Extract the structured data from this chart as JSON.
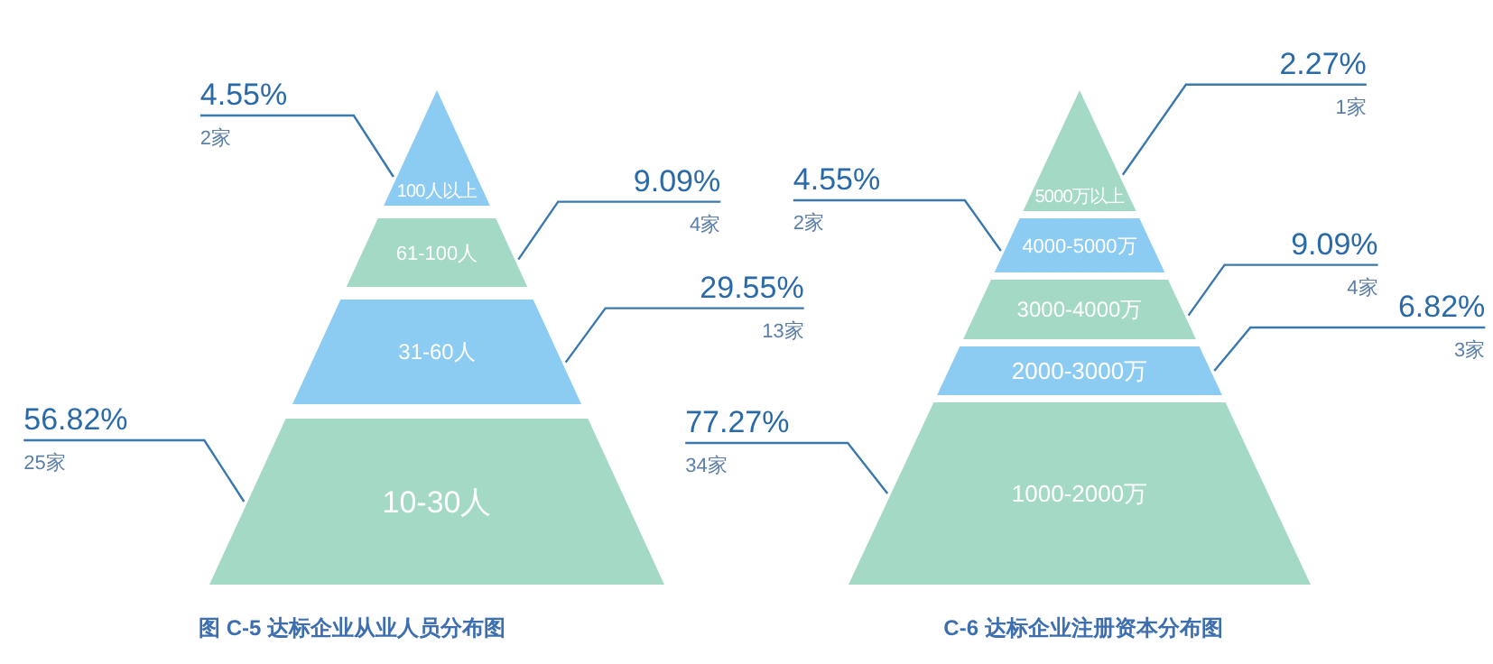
{
  "chart_data": [
    {
      "type": "other",
      "title": "图 C-5 达标企业从业人员分布图",
      "categories": [
        "100人以上",
        "61-100人",
        "31-60人",
        "10-30人"
      ],
      "values": [
        4.55,
        9.09,
        29.55,
        56.82
      ],
      "value_labels": [
        "4.55%",
        "9.09%",
        "29.55%",
        "56.82%"
      ],
      "annotations": [
        "2家",
        "4家",
        "13家",
        "25家"
      ],
      "colors": [
        "#8ccbf2",
        "#a3d9c5",
        "#8ccbf2",
        "#a3d9c5"
      ]
    },
    {
      "type": "other",
      "title": "C-6 达标企业注册资本分布图",
      "categories": [
        "5000万以上",
        "4000-5000万",
        "3000-4000万",
        "2000-3000万",
        "1000-2000万"
      ],
      "values": [
        2.27,
        4.55,
        9.09,
        6.82,
        77.27
      ],
      "value_labels": [
        "2.27%",
        "4.55%",
        "9.09%",
        "6.82%",
        "77.27%"
      ],
      "annotations": [
        "1家",
        "2家",
        "4家",
        "3家",
        "34家"
      ],
      "colors": [
        "#a3d9c5",
        "#8ccbf2",
        "#a3d9c5",
        "#8ccbf2",
        "#a3d9c5"
      ]
    }
  ]
}
